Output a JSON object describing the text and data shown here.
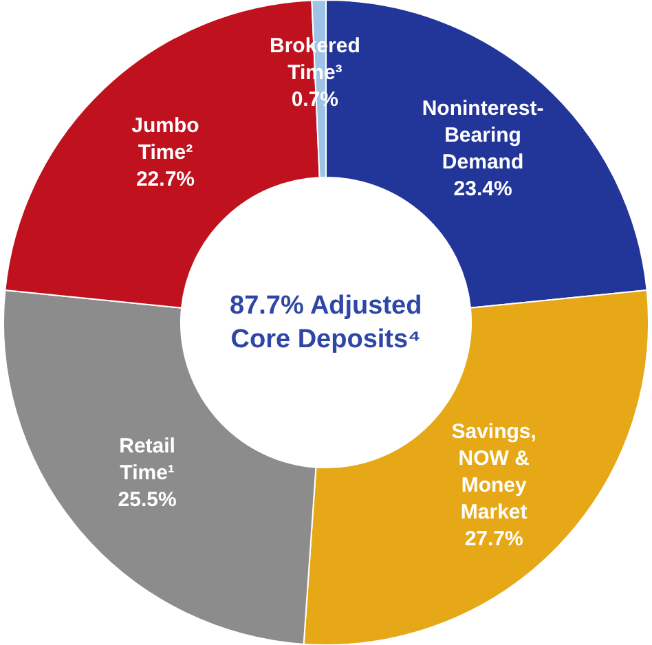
{
  "chart_data": {
    "type": "donut",
    "categories": [
      "Noninterest-Bearing Demand",
      "Savings, NOW & Money Market",
      "Retail Time¹",
      "Jumbo Time²",
      "Brokered Time³"
    ],
    "values": [
      23.4,
      27.7,
      25.5,
      22.7,
      0.7
    ],
    "value_labels": [
      "23.4%",
      "27.7%",
      "25.5%",
      "22.7%",
      "0.7%"
    ],
    "colors": [
      "#22369a",
      "#e6a817",
      "#8c8c8c",
      "#c0111f",
      "#9dc3e6"
    ],
    "annotations": [
      "87.7% Adjusted Core Deposits⁴"
    ],
    "legend": false
  }
}
